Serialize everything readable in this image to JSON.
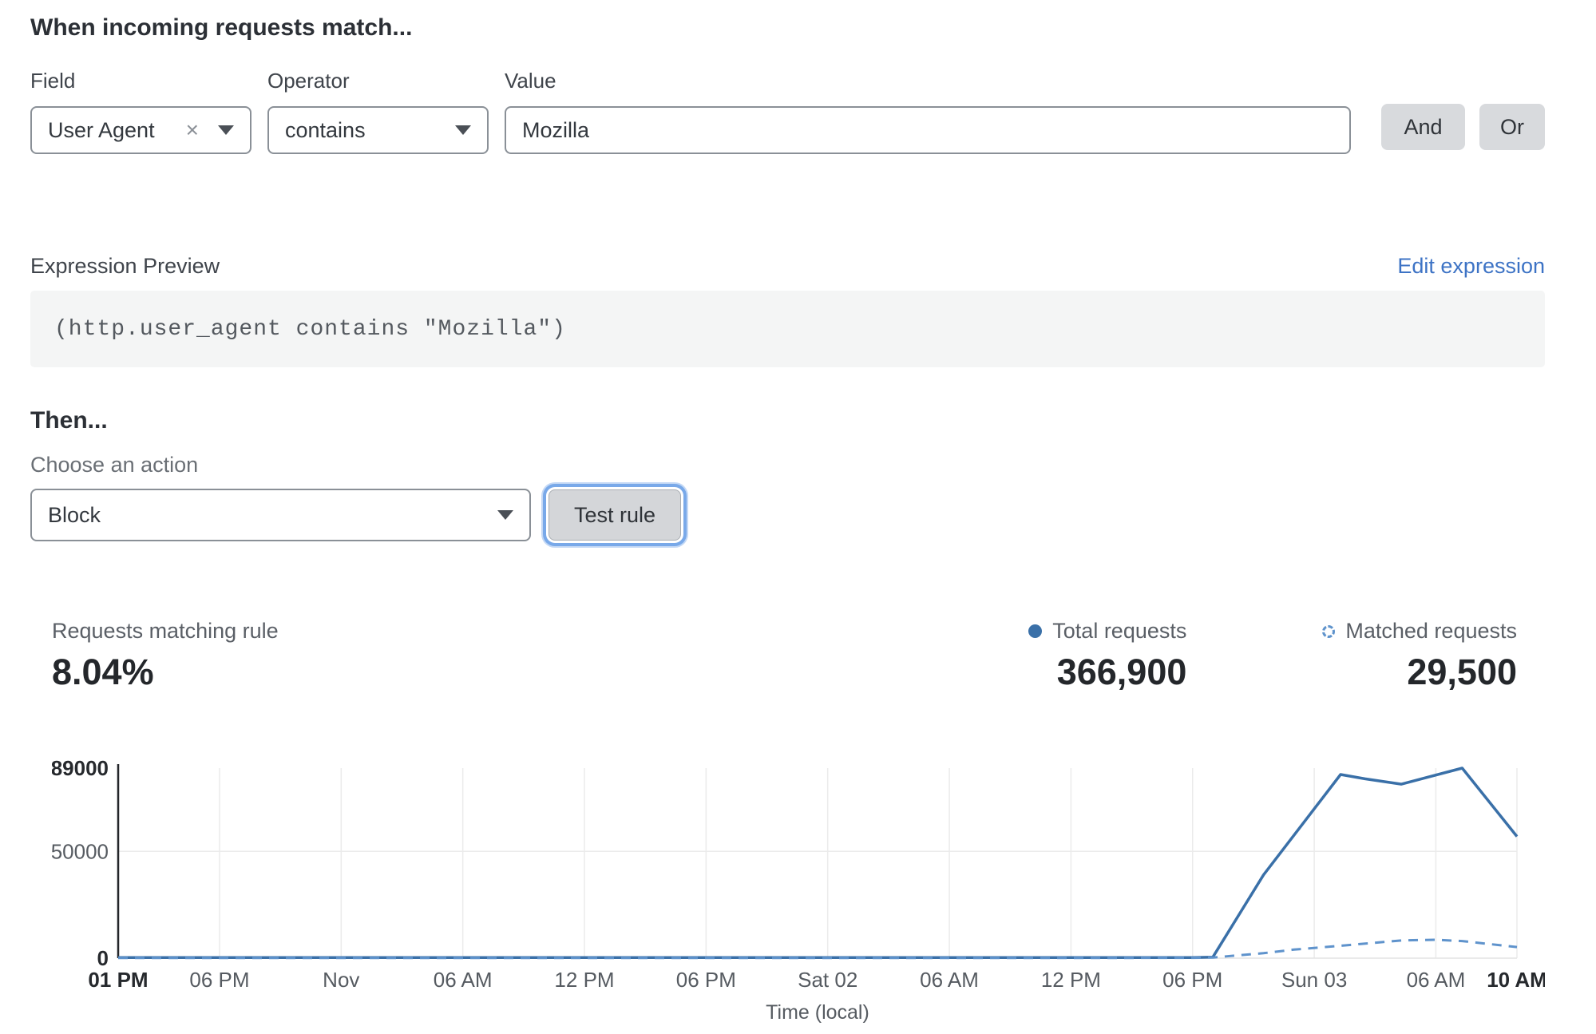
{
  "header": {
    "title": "When incoming requests match..."
  },
  "rule_builder": {
    "field": {
      "label": "Field",
      "value": "User Agent",
      "clear_icon": "×"
    },
    "operator": {
      "label": "Operator",
      "value": "contains"
    },
    "value": {
      "label": "Value",
      "value": "Mozilla"
    },
    "and_label": "And",
    "or_label": "Or"
  },
  "expression": {
    "label": "Expression Preview",
    "edit_link": "Edit expression",
    "code": "(http.user_agent contains \"Mozilla\")"
  },
  "action": {
    "heading": "Then...",
    "choose_label": "Choose an action",
    "selected": "Block",
    "test_button": "Test rule"
  },
  "stats": {
    "matching": {
      "label": "Requests matching rule",
      "value": "8.04%"
    },
    "total": {
      "label": "Total requests",
      "value": "366,900"
    },
    "matched": {
      "label": "Matched requests",
      "value": "29,500"
    }
  },
  "chart_data": {
    "type": "line",
    "title": "",
    "xlabel": "Time (local)",
    "ylabel": "",
    "ylim": [
      0,
      89000
    ],
    "yticks": [
      0,
      50000,
      89000
    ],
    "grid": "light",
    "legend_position": "above-right",
    "x_unit": "hours from Fri 01 PM",
    "xticks": [
      {
        "h": 0,
        "label": "01 PM",
        "bold": true
      },
      {
        "h": 5,
        "label": "06 PM"
      },
      {
        "h": 11,
        "label": "Nov"
      },
      {
        "h": 17,
        "label": "06 AM"
      },
      {
        "h": 23,
        "label": "12 PM"
      },
      {
        "h": 29,
        "label": "06 PM"
      },
      {
        "h": 35,
        "label": "Sat 02"
      },
      {
        "h": 41,
        "label": "06 AM"
      },
      {
        "h": 47,
        "label": "12 PM"
      },
      {
        "h": 53,
        "label": "06 PM"
      },
      {
        "h": 59,
        "label": "Sun 03"
      },
      {
        "h": 65,
        "label": "06 AM"
      },
      {
        "h": 69,
        "label": "10 AM",
        "bold": true
      }
    ],
    "series": [
      {
        "name": "Total requests",
        "style": "solid",
        "color": "#3a70a8",
        "points": [
          [
            0,
            250
          ],
          [
            10,
            250
          ],
          [
            20,
            250
          ],
          [
            30,
            250
          ],
          [
            40,
            250
          ],
          [
            50,
            250
          ],
          [
            53,
            300
          ],
          [
            54,
            500
          ],
          [
            56.5,
            39000
          ],
          [
            60.3,
            86000
          ],
          [
            61.5,
            84000
          ],
          [
            63.3,
            81500
          ],
          [
            66.3,
            89000
          ],
          [
            69,
            57000
          ]
        ]
      },
      {
        "name": "Matched requests",
        "style": "dashed",
        "color": "#5f93cc",
        "points": [
          [
            0,
            100
          ],
          [
            10,
            100
          ],
          [
            20,
            100
          ],
          [
            30,
            100
          ],
          [
            40,
            100
          ],
          [
            50,
            100
          ],
          [
            53,
            150
          ],
          [
            54,
            300
          ],
          [
            56.5,
            2300
          ],
          [
            58,
            4000
          ],
          [
            60.3,
            5800
          ],
          [
            63.3,
            8300
          ],
          [
            65,
            8600
          ],
          [
            66.3,
            8000
          ],
          [
            69,
            5200
          ]
        ]
      }
    ]
  }
}
